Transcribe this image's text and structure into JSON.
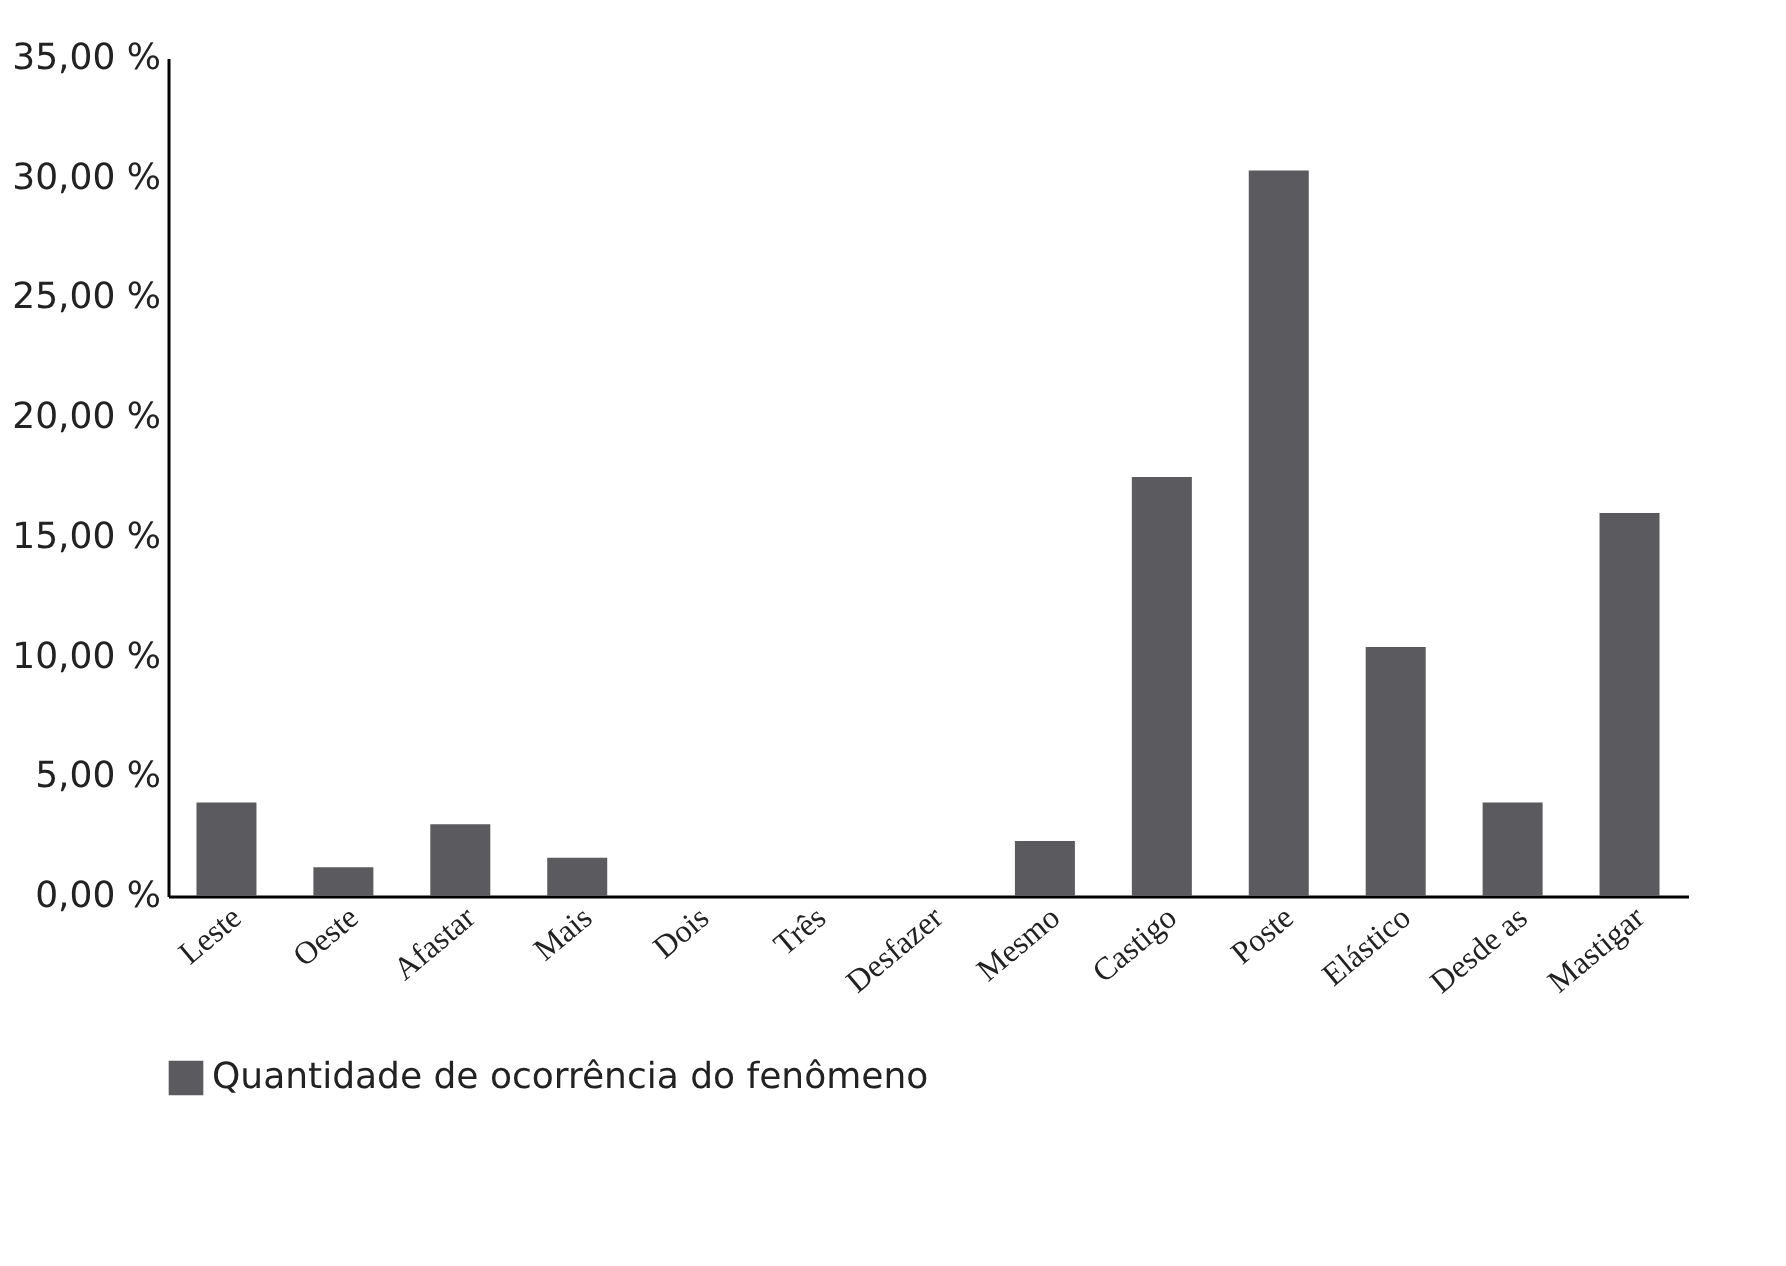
{
  "chart_data": {
    "type": "bar",
    "categories": [
      "Leste",
      "Oeste",
      "Afastar",
      "Mais",
      "Dois",
      "Três",
      "Desfazer",
      "Mesmo",
      "Castigo",
      "Poste",
      "Elástico",
      "Desde as",
      "Mastigar"
    ],
    "series": [
      {
        "name": "Quantidade de ocorrência do fenômeno",
        "color": "#5b5a5e",
        "values": [
          3.9,
          1.2,
          3.0,
          1.6,
          0,
          0,
          0,
          2.3,
          17.5,
          30.3,
          10.4,
          3.9,
          16.0
        ]
      }
    ],
    "ylim": [
      0,
      35
    ],
    "yticks": [
      {
        "value": 0,
        "label": "0,00 %"
      },
      {
        "value": 5,
        "label": "5,00 %"
      },
      {
        "value": 10,
        "label": "10,00 %"
      },
      {
        "value": 15,
        "label": "15,00 %"
      },
      {
        "value": 20,
        "label": "20,00 %"
      },
      {
        "value": 25,
        "label": "25,00 %"
      },
      {
        "value": 30,
        "label": "30,00 %"
      },
      {
        "value": 35,
        "label": "35,00 %"
      }
    ],
    "grid": false,
    "legend": "bottom"
  }
}
